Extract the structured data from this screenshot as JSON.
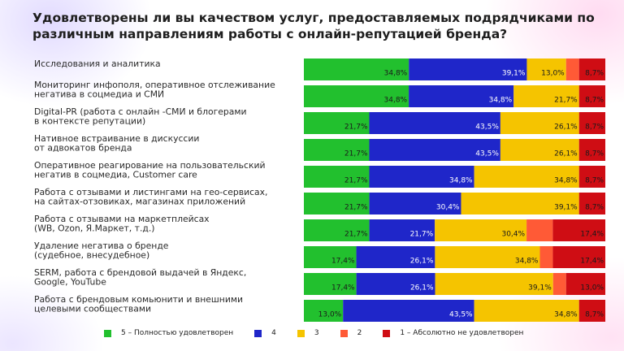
{
  "title": "Удовлетворены ли вы качеством услуг, предоставляемых подрядчиками по различным направлениям работы с онлайн-репутацией бренда?",
  "chart_data": {
    "type": "bar",
    "orientation": "horizontal",
    "stacked": "100%",
    "categories": [
      [
        "Исследования и аналитика"
      ],
      [
        "Мониторинг инфополя, оперативное отслеживание",
        "негатива в соцмедиа и СМИ"
      ],
      [
        "Digital-PR (работа с онлайн -СМИ и блогерами",
        "в контексте репутации)"
      ],
      [
        "Нативное встраивание в дискуссии",
        "от адвокатов бренда"
      ],
      [
        "Оперативное реагирование на пользовательский",
        "негатив в соцмедиа, Customer care"
      ],
      [
        "Работа с отзывами и листингами на гео-сервисах,",
        "на сайтах-отзовиках, магазинах приложений"
      ],
      [
        "Работа с отзывами на маркетплейсах",
        "(WB, Ozon, Я.Маркет, т.д.)"
      ],
      [
        "Удаление негатива о бренде",
        "(судебное, внесудебное)"
      ],
      [
        "SERM, работа с брендовой выдачей в Яндекс,",
        "Google, YouTube"
      ],
      [
        "Работа с брендовым комьюнити и внешними",
        "целевыми сообществами"
      ]
    ],
    "series": [
      {
        "name": "5 – Полностью  удовлетворен",
        "color": "#22c02e",
        "values": [
          34.8,
          34.8,
          21.7,
          21.7,
          21.7,
          21.7,
          21.7,
          17.4,
          17.4,
          13.0
        ],
        "labels": [
          "34,8%",
          "34,8%",
          "21,7%",
          "21,7%",
          "21,7%",
          "21,7%",
          "21,7%",
          "17,4%",
          "17,4%",
          "13,0%"
        ]
      },
      {
        "name": "4",
        "color": "#1f26c9",
        "values": [
          39.1,
          34.8,
          43.5,
          43.5,
          34.8,
          30.4,
          21.7,
          26.1,
          26.1,
          43.5
        ],
        "labels": [
          "39,1%",
          "34,8%",
          "43,5%",
          "43,5%",
          "34,8%",
          "30,4%",
          "21,7%",
          "26,1%",
          "26,1%",
          "43,5%"
        ]
      },
      {
        "name": "3",
        "color": "#f5c400",
        "values": [
          13.0,
          21.7,
          26.1,
          26.1,
          34.8,
          39.1,
          30.4,
          34.8,
          39.1,
          34.8
        ],
        "labels": [
          "13,0%",
          "21,7%",
          "26,1%",
          "26,1%",
          "34,8%",
          "39,1%",
          "30,4%",
          "34,8%",
          "39,1%",
          "34,8%"
        ]
      },
      {
        "name": "2",
        "color": "#ff5a36",
        "values": [
          4.3,
          0,
          0,
          0,
          0,
          0,
          8.7,
          4.3,
          4.3,
          0
        ],
        "labels": [
          "",
          "",
          "",
          "",
          "",
          "",
          "",
          "",
          "",
          ""
        ]
      },
      {
        "name": "1 – Абсолютно  не удовлетворен",
        "color": "#cf0d14",
        "values": [
          8.7,
          8.7,
          8.7,
          8.7,
          8.7,
          8.7,
          17.4,
          17.4,
          13.0,
          8.7
        ],
        "labels": [
          "8,7%",
          "8,7%",
          "8,7%",
          "8,7%",
          "8,7%",
          "8,7%",
          "17,4%",
          "17,4%",
          "13,0%",
          "8,7%"
        ]
      }
    ],
    "xlim": [
      0,
      100
    ],
    "grid": false,
    "legend_position": "bottom"
  }
}
